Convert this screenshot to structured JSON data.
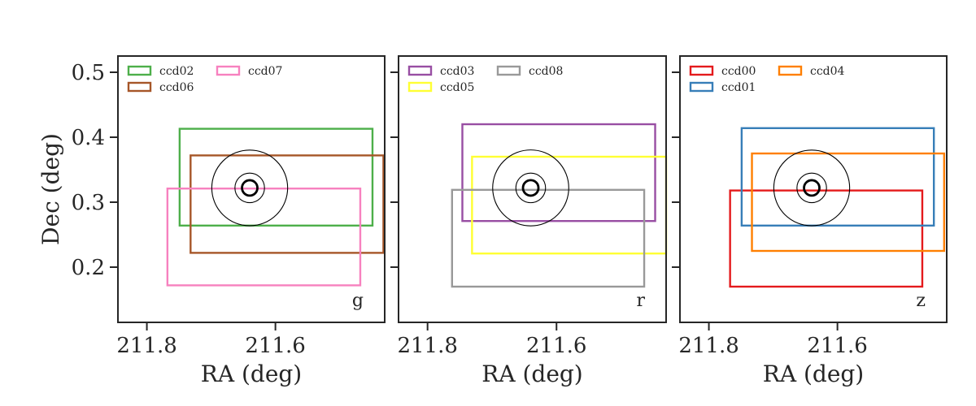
{
  "chart_data": [
    {
      "type": "footprint",
      "band": "g",
      "xlabel": "RA (deg)",
      "ylabel": "Dec (deg)",
      "xlim": [
        211.845,
        211.43
      ],
      "ylim": [
        0.115,
        0.525
      ],
      "xticks": [
        211.8,
        211.6
      ],
      "xtick_labels": [
        "211.8",
        "211.6"
      ],
      "yticks": [
        0.5,
        0.4,
        0.3,
        0.2
      ],
      "ytick_labels": [
        "0.5",
        "0.4",
        "0.3",
        "0.2"
      ],
      "center": {
        "ra": 211.64,
        "dec": 0.322
      },
      "circle_radii_deg": [
        0.012,
        0.023,
        0.059
      ],
      "legend_location": "top-left",
      "ccds": [
        {
          "name": "ccd02",
          "color": "#4daf4a",
          "ra_min": 211.449,
          "ra_max": 211.749,
          "dec_min": 0.264,
          "dec_max": 0.413
        },
        {
          "name": "ccd06",
          "color": "#a65628",
          "ra_min": 211.432,
          "ra_max": 211.732,
          "dec_min": 0.222,
          "dec_max": 0.372
        },
        {
          "name": "ccd07",
          "color": "#f781bf",
          "ra_min": 211.468,
          "ra_max": 211.768,
          "dec_min": 0.172,
          "dec_max": 0.321
        }
      ]
    },
    {
      "type": "footprint",
      "band": "r",
      "xlabel": "RA (deg)",
      "ylabel": "",
      "xlim": [
        211.845,
        211.43
      ],
      "ylim": [
        0.115,
        0.525
      ],
      "xticks": [
        211.8,
        211.6
      ],
      "xtick_labels": [
        "211.8",
        "211.6"
      ],
      "yticks": [
        0.5,
        0.4,
        0.3,
        0.2
      ],
      "ytick_labels": [],
      "center": {
        "ra": 211.64,
        "dec": 0.322
      },
      "circle_radii_deg": [
        0.012,
        0.023,
        0.059
      ],
      "legend_location": "top-left",
      "ccds": [
        {
          "name": "ccd03",
          "color": "#984ea3",
          "ra_min": 211.447,
          "ra_max": 211.746,
          "dec_min": 0.271,
          "dec_max": 0.42
        },
        {
          "name": "ccd05",
          "color": "#ffff33",
          "ra_min": 211.43,
          "ra_max": 211.731,
          "dec_min": 0.221,
          "dec_max": 0.37
        },
        {
          "name": "ccd08",
          "color": "#999999",
          "ra_min": 211.464,
          "ra_max": 211.762,
          "dec_min": 0.17,
          "dec_max": 0.319
        }
      ]
    },
    {
      "type": "footprint",
      "band": "z",
      "xlabel": "RA (deg)",
      "ylabel": "",
      "xlim": [
        211.845,
        211.43
      ],
      "ylim": [
        0.115,
        0.525
      ],
      "xticks": [
        211.8,
        211.6
      ],
      "xtick_labels": [
        "211.8",
        "211.6"
      ],
      "yticks": [
        0.5,
        0.4,
        0.3,
        0.2
      ],
      "ytick_labels": [],
      "center": {
        "ra": 211.64,
        "dec": 0.322
      },
      "circle_radii_deg": [
        0.012,
        0.023,
        0.059
      ],
      "legend_location": "top-left",
      "ccds": [
        {
          "name": "ccd00",
          "color": "#e41a1c",
          "ra_min": 211.468,
          "ra_max": 211.767,
          "dec_min": 0.17,
          "dec_max": 0.318
        },
        {
          "name": "ccd01",
          "color": "#377eb8",
          "ra_min": 211.45,
          "ra_max": 211.749,
          "dec_min": 0.264,
          "dec_max": 0.414
        },
        {
          "name": "ccd04",
          "color": "#ff7f00",
          "ra_min": 211.434,
          "ra_max": 211.733,
          "dec_min": 0.225,
          "dec_max": 0.375
        }
      ]
    }
  ]
}
